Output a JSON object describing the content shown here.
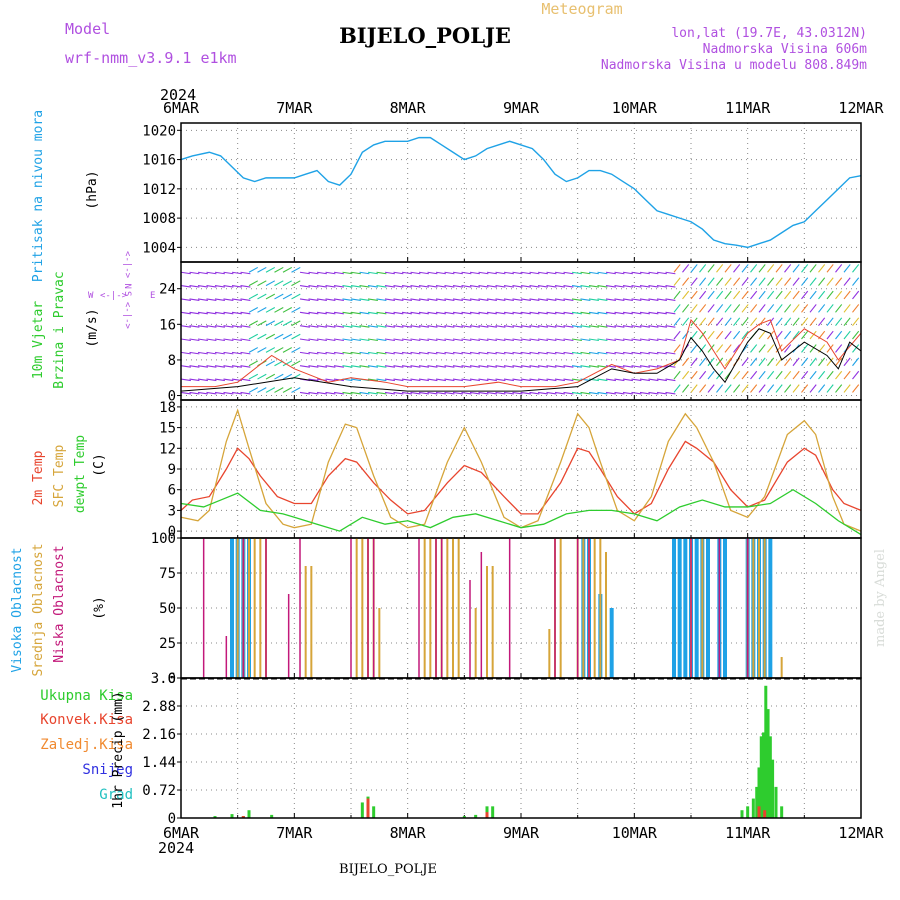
{
  "header": {
    "model_label": "Model",
    "model_name": "wrf-nmm_v3.9.1 e1km",
    "station": "BIJELO_POLJE",
    "product": "Meteogram",
    "lonlat": "lon,lat (19.7E, 43.0312N)",
    "elevation": "Nadmorska Visina 606m",
    "model_elevation": "Nadmorska Visina u modelu 808.849m"
  },
  "time_axis": {
    "year": "2024",
    "labels": [
      "6MAR",
      "7MAR",
      "8MAR",
      "9MAR",
      "10MAR",
      "11MAR",
      "12MAR"
    ]
  },
  "footer": {
    "station": "BIJELO_POLJE",
    "watermark": "made by Angel"
  },
  "wind_legend": {
    "north": "N",
    "south": "S",
    "west": "W",
    "east": "E"
  },
  "colors": {
    "pressure": "#1fa2e6",
    "wind_speed": "#000000",
    "wind_gust": "#e8452e",
    "temp_2m": "#e8452e",
    "temp_sfc": "#d6a53a",
    "dewpoint": "#2ecc2e",
    "cloud_high": "#1fa2e6",
    "cloud_mid": "#d6a53a",
    "cloud_low": "#c2187a",
    "precip_total": "#2ecc2e",
    "precip_conv": "#e8452e",
    "precip_frz": "#f08a30",
    "precip_snow": "#3030e0",
    "precip_hail": "#20c0c0",
    "model_label": "#b050e0"
  },
  "chart_data": [
    {
      "type": "line",
      "panel": "pressure",
      "ylabel": "Pritisak na nivou mora",
      "unit": "(hPa)",
      "ylim": [
        1002,
        1021
      ],
      "yticks": [
        1004,
        1008,
        1012,
        1016,
        1020
      ],
      "x_days": [
        0,
        0.1,
        0.25,
        0.35,
        0.45,
        0.55,
        0.65,
        0.75,
        0.85,
        1.0,
        1.1,
        1.2,
        1.3,
        1.4,
        1.5,
        1.6,
        1.7,
        1.8,
        1.9,
        2.0,
        2.1,
        2.2,
        2.3,
        2.4,
        2.5,
        2.6,
        2.7,
        2.8,
        2.9,
        3.0,
        3.1,
        3.2,
        3.3,
        3.4,
        3.5,
        3.6,
        3.7,
        3.8,
        3.9,
        4.0,
        4.1,
        4.2,
        4.3,
        4.4,
        4.5,
        4.6,
        4.7,
        4.8,
        4.9,
        5.0,
        5.1,
        5.2,
        5.3,
        5.4,
        5.5,
        5.6,
        5.7,
        5.8,
        5.9,
        6.0
      ],
      "y": [
        1016,
        1016.5,
        1017,
        1016.5,
        1015,
        1013.5,
        1013,
        1013.5,
        1013.5,
        1013.5,
        1014,
        1014.5,
        1013,
        1012.5,
        1014,
        1017,
        1018,
        1018.5,
        1018.5,
        1018.5,
        1019,
        1019,
        1018,
        1017,
        1016,
        1016.5,
        1017.5,
        1018,
        1018.5,
        1018,
        1017.5,
        1016,
        1014,
        1013,
        1013.5,
        1014.5,
        1014.5,
        1014,
        1013,
        1012,
        1010.5,
        1009,
        1008.5,
        1008,
        1007.5,
        1006.5,
        1005,
        1004.5,
        1004.3,
        1004,
        1004.5,
        1005,
        1006,
        1007,
        1007.5,
        1009,
        1010.5,
        1012,
        1013.5,
        1013.8
      ]
    },
    {
      "type": "line",
      "panel": "wind",
      "ylabel": "10m Vjetar Brzina i Pravac",
      "unit": "(m/s)",
      "ylim": [
        -1,
        30
      ],
      "yticks": [
        0,
        8,
        16,
        24
      ],
      "series": [
        {
          "values_days": [
            0,
            0.5,
            1.0,
            1.5,
            2.0,
            2.5,
            3.0,
            3.5,
            3.8,
            4.0,
            4.2,
            4.4,
            4.5,
            4.6,
            4.7,
            4.8,
            5.0,
            5.1,
            5.2,
            5.3,
            5.5,
            5.7,
            5.8,
            5.9,
            6.0
          ],
          "y": [
            1,
            2,
            4,
            2,
            1,
            1,
            1,
            2,
            6,
            5,
            5,
            8,
            13,
            10,
            6,
            3,
            12,
            15,
            14,
            8,
            12,
            9,
            6,
            12,
            10
          ]
        },
        {
          "values_days": [
            0,
            0.3,
            0.5,
            0.8,
            1.0,
            1.3,
            1.5,
            1.8,
            2.0,
            2.3,
            2.5,
            2.8,
            3.0,
            3.3,
            3.5,
            3.8,
            4.0,
            4.2,
            4.4,
            4.5,
            4.6,
            4.7,
            4.8,
            5.0,
            5.1,
            5.2,
            5.3,
            5.5,
            5.7,
            5.8,
            6.0
          ],
          "y": [
            2,
            2,
            3,
            9,
            6,
            3,
            4,
            3,
            2,
            2,
            2,
            3,
            2,
            2,
            3,
            7,
            5,
            6,
            8,
            17,
            14,
            10,
            6,
            14,
            16,
            17,
            10,
            15,
            12,
            8,
            14
          ]
        }
      ]
    },
    {
      "type": "line",
      "panel": "temperature",
      "ylabel": "2m Temp SFC Temp dewpt Temp",
      "unit": "(C)",
      "ylim": [
        -1,
        19
      ],
      "yticks": [
        0,
        3,
        6,
        9,
        12,
        15,
        18
      ],
      "series": [
        {
          "name": "2m Temp",
          "x_days": [
            0,
            0.1,
            0.25,
            0.4,
            0.5,
            0.6,
            0.7,
            0.85,
            1.0,
            1.15,
            1.3,
            1.45,
            1.55,
            1.7,
            1.85,
            2.0,
            2.15,
            2.35,
            2.5,
            2.65,
            2.85,
            3.0,
            3.15,
            3.35,
            3.5,
            3.6,
            3.7,
            3.85,
            4.0,
            4.15,
            4.3,
            4.45,
            4.55,
            4.7,
            4.85,
            5.0,
            5.15,
            5.35,
            5.5,
            5.6,
            5.75,
            5.85,
            6.0
          ],
          "y": [
            3,
            4.5,
            5,
            9,
            12,
            10.5,
            8,
            5,
            4,
            4,
            8,
            10.5,
            10,
            7,
            4.5,
            2.5,
            3,
            7,
            9.5,
            8.5,
            5,
            2.5,
            2.5,
            7,
            12,
            11.5,
            9,
            5,
            2.5,
            4,
            9,
            13,
            12,
            10,
            6,
            3.5,
            4.5,
            10,
            12,
            11,
            6,
            4,
            3
          ]
        },
        {
          "name": "SFC Temp",
          "x_days": [
            0,
            0.15,
            0.25,
            0.4,
            0.5,
            0.6,
            0.75,
            0.9,
            1.0,
            1.15,
            1.3,
            1.45,
            1.55,
            1.7,
            1.85,
            2.0,
            2.15,
            2.35,
            2.5,
            2.65,
            2.85,
            3.0,
            3.15,
            3.35,
            3.5,
            3.6,
            3.7,
            3.85,
            4.0,
            4.15,
            4.3,
            4.45,
            4.55,
            4.7,
            4.85,
            5.0,
            5.15,
            5.35,
            5.5,
            5.6,
            5.75,
            5.85,
            6.0
          ],
          "y": [
            2,
            1.5,
            3,
            13,
            17.5,
            12,
            4,
            1,
            0.5,
            1,
            10,
            15.5,
            15,
            8,
            2,
            0.5,
            1,
            10,
            15,
            10,
            2,
            0.5,
            1.5,
            10,
            17,
            15,
            10,
            3,
            1.5,
            5,
            13,
            17,
            15,
            10,
            3,
            2,
            5,
            14,
            16,
            14,
            5,
            1,
            0
          ]
        },
        {
          "name": "dewpt Temp",
          "x_days": [
            0,
            0.2,
            0.35,
            0.5,
            0.7,
            0.9,
            1.0,
            1.2,
            1.4,
            1.6,
            1.8,
            2.0,
            2.2,
            2.4,
            2.6,
            2.8,
            3.0,
            3.2,
            3.4,
            3.6,
            3.8,
            4.0,
            4.2,
            4.4,
            4.6,
            4.8,
            5.0,
            5.2,
            5.4,
            5.6,
            5.8,
            6.0
          ],
          "y": [
            4,
            3.5,
            4.5,
            5.5,
            3,
            2.5,
            2,
            1,
            0,
            2,
            1,
            1.5,
            0.5,
            2,
            2.5,
            1.5,
            0.5,
            1,
            2.5,
            3,
            3,
            2.5,
            1.5,
            3.5,
            4.5,
            3.5,
            3.5,
            4,
            6,
            4,
            1.5,
            -0.5
          ]
        }
      ]
    },
    {
      "type": "bar",
      "panel": "clouds",
      "ylabel": "Visoka Oblacnost Srednja Oblacnost Niska Oblacnost",
      "unit": "(%)",
      "ylim": [
        0,
        100
      ],
      "yticks": [
        0,
        25,
        50,
        75,
        100
      ],
      "high": {
        "x_days": [
          0.45,
          0.5,
          0.55,
          0.6,
          3.55,
          3.6,
          3.7,
          3.8,
          4.35,
          4.4,
          4.45,
          4.5,
          4.55,
          4.6,
          4.65,
          4.75,
          4.8,
          5.0,
          5.05,
          5.1,
          5.15,
          5.2
        ],
        "y": [
          100,
          100,
          100,
          100,
          100,
          100,
          60,
          50,
          100,
          100,
          100,
          100,
          100,
          100,
          100,
          100,
          100,
          100,
          100,
          100,
          100,
          100
        ]
      },
      "mid": {
        "x_days": [
          0.5,
          0.55,
          0.6,
          0.65,
          0.7,
          0.75,
          1.1,
          1.15,
          1.55,
          1.6,
          1.65,
          1.7,
          1.75,
          2.15,
          2.2,
          2.25,
          2.3,
          2.35,
          2.4,
          2.45,
          2.6,
          2.7,
          2.75,
          3.25,
          3.3,
          3.35,
          3.5,
          3.55,
          3.6,
          3.65,
          3.7,
          3.75,
          4.5,
          4.6,
          5.0,
          5.05,
          5.1,
          5.15,
          5.3
        ],
        "y": [
          100,
          100,
          100,
          100,
          100,
          100,
          80,
          80,
          100,
          100,
          100,
          100,
          50,
          100,
          100,
          100,
          100,
          100,
          100,
          100,
          50,
          80,
          80,
          35,
          100,
          100,
          100,
          100,
          100,
          100,
          100,
          90,
          100,
          100,
          100,
          100,
          100,
          100,
          15
        ]
      },
      "low": {
        "x_days": [
          0.2,
          0.4,
          0.55,
          0.75,
          0.95,
          1.05,
          1.5,
          1.65,
          1.7,
          2.1,
          2.25,
          2.3,
          2.55,
          2.65,
          2.9,
          3.3,
          3.5,
          3.6,
          4.5,
          4.75,
          5.0
        ],
        "y": [
          100,
          30,
          100,
          100,
          60,
          100,
          100,
          100,
          100,
          100,
          100,
          100,
          70,
          90,
          100,
          100,
          100,
          100,
          100,
          100,
          100
        ]
      }
    },
    {
      "type": "bar",
      "panel": "precipitation",
      "ylabel": "1hr Precip (mm)",
      "series_names": [
        "Ukupna Kisa",
        "Konvek.Kisa",
        "Zaledj.Kisa",
        "Snijeg",
        "Grad"
      ],
      "ylim": [
        0,
        3.6
      ],
      "yticks": [
        0,
        0.72,
        1.44,
        2.16,
        2.88,
        3.6
      ],
      "total": {
        "x_days": [
          0.3,
          0.45,
          0.55,
          0.6,
          0.8,
          1.6,
          1.65,
          1.7,
          2.5,
          2.6,
          2.7,
          2.75,
          4.95,
          5.0,
          5.05,
          5.08,
          5.1,
          5.12,
          5.14,
          5.16,
          5.18,
          5.2,
          5.22,
          5.25,
          5.3
        ],
        "y": [
          0.05,
          0.1,
          0.05,
          0.2,
          0.08,
          0.4,
          0.55,
          0.3,
          0.05,
          0.08,
          0.3,
          0.3,
          0.2,
          0.3,
          0.5,
          0.8,
          1.3,
          2.1,
          2.2,
          3.4,
          2.8,
          2.1,
          1.5,
          0.8,
          0.3
        ]
      },
      "convective": {
        "x_days": [
          0.55,
          1.65,
          2.7,
          5.1,
          5.15
        ],
        "y": [
          0.05,
          0.5,
          0.15,
          0.3,
          0.2
        ]
      }
    }
  ]
}
